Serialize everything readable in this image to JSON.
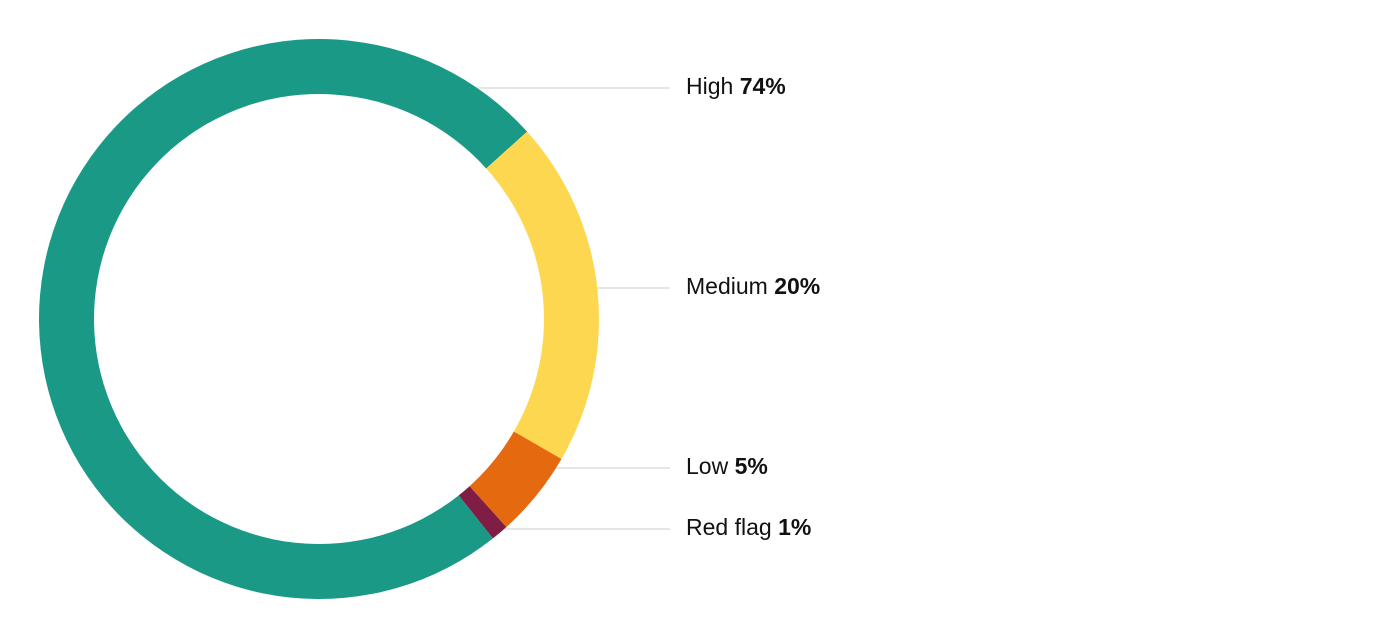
{
  "chart_data": {
    "type": "donut",
    "categories": [
      "High",
      "Medium",
      "Low",
      "Red flag"
    ],
    "values": [
      74,
      20,
      5,
      1
    ],
    "value_labels": [
      "74%",
      "20%",
      "5%",
      "1%"
    ],
    "colors": [
      "#1a9a86",
      "#fed751",
      "#e5690e",
      "#7f1d45"
    ]
  }
}
